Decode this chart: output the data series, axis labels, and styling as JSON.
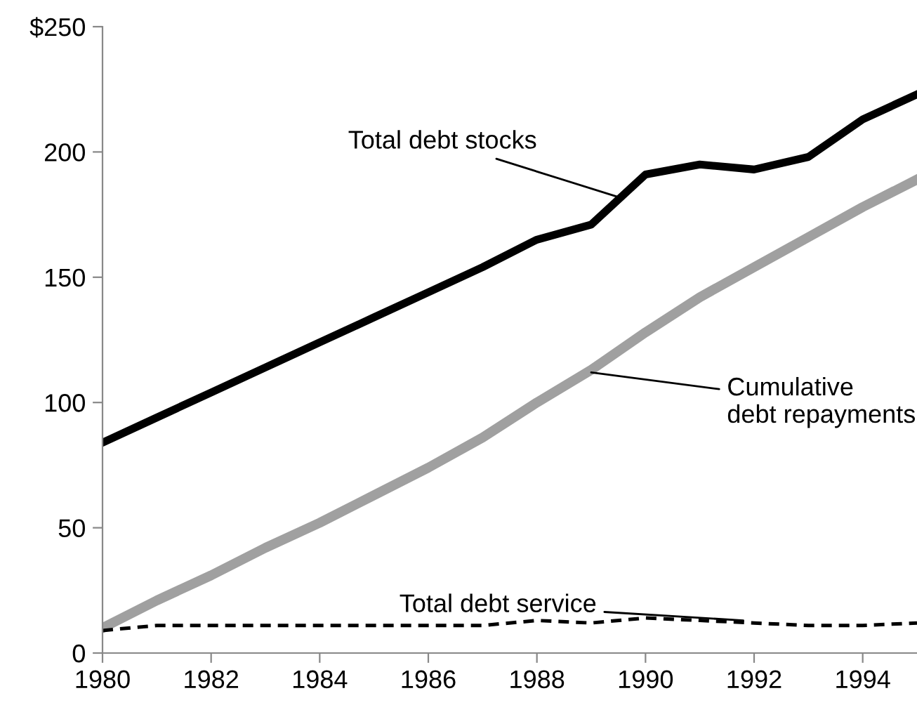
{
  "chart_data": {
    "type": "line",
    "x": [
      1980,
      1981,
      1982,
      1983,
      1984,
      1985,
      1986,
      1987,
      1988,
      1989,
      1990,
      1991,
      1992,
      1993,
      1994,
      1995
    ],
    "series": [
      {
        "color": "#000000",
        "line_style": "solid",
        "values": [
          84,
          94,
          104,
          114,
          124,
          134,
          144,
          154,
          165,
          171,
          191,
          195,
          193,
          198,
          213,
          223
        ]
      },
      {
        "color": "#a0a0a0",
        "line_style": "solid",
        "values": [
          10,
          21,
          31,
          42,
          52,
          63,
          74,
          86,
          100,
          113,
          128,
          142,
          154,
          166,
          178,
          189
        ]
      },
      {
        "color": "#000000",
        "line_style": "dashed",
        "values": [
          9,
          11,
          11,
          11,
          11,
          11,
          11,
          11,
          13,
          12,
          14,
          13,
          12,
          11,
          11,
          12
        ]
      }
    ],
    "annotations": [
      {
        "text": "Total debt stocks",
        "x": 1989.5,
        "y": 182
      },
      {
        "text": "Cumulative\ndebt repayments",
        "x": 1989,
        "y": 112
      },
      {
        "text": "Total debt service",
        "x": 1991.8,
        "y": 13
      }
    ],
    "xlim": [
      1980,
      1995
    ],
    "xticks": [
      1980,
      1982,
      1984,
      1986,
      1988,
      1990,
      1992,
      1994
    ],
    "ylim": [
      0,
      250
    ],
    "yticks": [
      0,
      50,
      100,
      150,
      200,
      {
        "value": 250,
        "label": "$250"
      }
    ],
    "grid": false,
    "legend": false,
    "marker": "none"
  }
}
